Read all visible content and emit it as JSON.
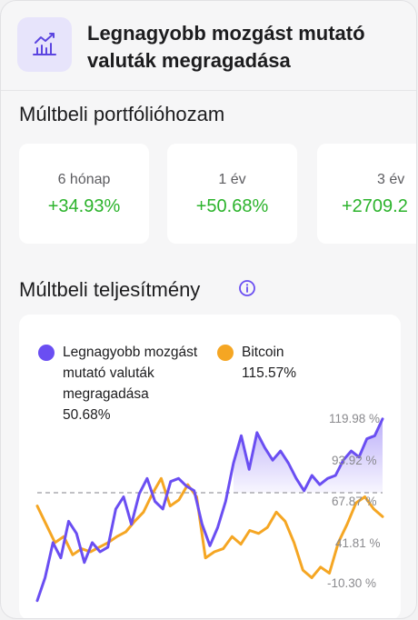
{
  "header": {
    "title": "Legnagyobb mozgást mutató valuták megragadása",
    "icon": "chart-bar-line-icon",
    "icon_color": "#5b45e0"
  },
  "returns_section": {
    "title": "Múltbeli portfólióhozam",
    "cards": [
      {
        "label": "6 hónap",
        "value": "+34.93%"
      },
      {
        "label": "1 év",
        "value": "+50.68%"
      },
      {
        "label": "3 év",
        "value": "+2709.2"
      }
    ],
    "positive_color": "#2bb32b"
  },
  "performance_section": {
    "title": "Múltbeli teljesítmény",
    "info_icon": "info-icon"
  },
  "chart_data": {
    "type": "line",
    "y_tick_labels": [
      "119.98 %",
      "93.92 %",
      "67.87 %",
      "41.81 %",
      "-10.30 %"
    ],
    "series": [
      {
        "name": "Legnagyobb mozgást mutató valuták megragadása",
        "value_label": "50.68%",
        "color": "#6a4ef2",
        "values": [
          -20,
          -5,
          18,
          8,
          32,
          24,
          5,
          18,
          12,
          15,
          40,
          48,
          30,
          50,
          60,
          45,
          40,
          58,
          60,
          55,
          52,
          30,
          16,
          28,
          45,
          70,
          88,
          66,
          90,
          80,
          72,
          78,
          70,
          60,
          52,
          62,
          56,
          60,
          62,
          72,
          78,
          74,
          86,
          88,
          99
        ]
      },
      {
        "name": "Bitcoin",
        "value_label": "115.57%",
        "color": "#f5a623",
        "values": [
          42,
          30,
          18,
          22,
          10,
          14,
          12,
          15,
          18,
          22,
          25,
          32,
          38,
          50,
          60,
          42,
          46,
          56,
          48,
          8,
          12,
          14,
          22,
          17,
          26,
          24,
          28,
          38,
          32,
          18,
          0,
          -5,
          2,
          -2,
          18,
          30,
          44,
          48,
          40,
          35
        ]
      }
    ],
    "baseline_value": 50.68,
    "grid": false,
    "legend_position": "top"
  }
}
